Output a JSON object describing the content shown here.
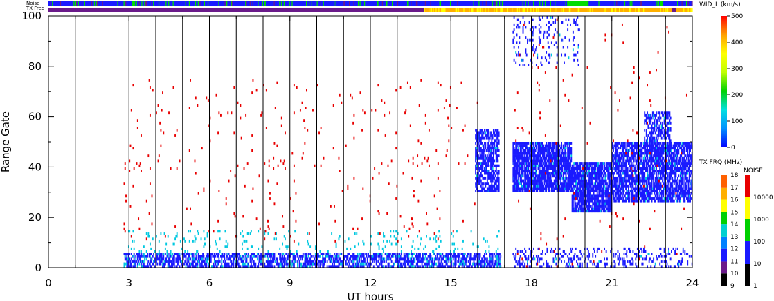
{
  "strip_labels": {
    "noise": "Noise",
    "tx_freq": "TX Freq"
  },
  "colors": {
    "red": "#e80000",
    "blue": "#1a1aff",
    "cyan": "#00c8e0",
    "green": "#00dd00",
    "yellow": "#ffff00",
    "orange": "#ffb000",
    "purple": "#6a1a8a",
    "black": "#000000"
  },
  "chart_data": {
    "type": "heatmap",
    "xlabel": "UT hours",
    "ylabel": "Range Gate",
    "xlim": [
      0,
      24
    ],
    "ylim": [
      0,
      100
    ],
    "x_ticks": [
      0,
      3,
      6,
      9,
      12,
      15,
      18,
      21,
      24
    ],
    "y_ticks": [
      0,
      20,
      40,
      60,
      80,
      100
    ],
    "scan_boundaries_ut": [
      1,
      2,
      3,
      4,
      5,
      6,
      7,
      8,
      9,
      10,
      11,
      12,
      13,
      14,
      15,
      16,
      17,
      18,
      19,
      20,
      21,
      22,
      23
    ],
    "data_gap_ut": [
      16.85,
      17.25
    ],
    "echo_regions": [
      {
        "ut_start": 2.8,
        "ut_end": 16.9,
        "gate_min": 0,
        "gate_max": 6,
        "color": "blue",
        "density": 0.55
      },
      {
        "ut_start": 2.8,
        "ut_end": 16.9,
        "gate_min": 0,
        "gate_max": 15,
        "color": "cyan",
        "density": 0.05
      },
      {
        "ut_start": 2.8,
        "ut_end": 16.0,
        "gate_min": 10,
        "gate_max": 75,
        "color": "red",
        "density": 0.012
      },
      {
        "ut_start": 15.9,
        "ut_end": 16.8,
        "gate_min": 30,
        "gate_max": 55,
        "color": "blue",
        "density": 0.6
      },
      {
        "ut_start": 17.3,
        "ut_end": 19.5,
        "gate_min": 30,
        "gate_max": 50,
        "color": "blue",
        "density": 0.8
      },
      {
        "ut_start": 19.5,
        "ut_end": 21.0,
        "gate_min": 22,
        "gate_max": 42,
        "color": "blue",
        "density": 0.8
      },
      {
        "ut_start": 21.0,
        "ut_end": 24.0,
        "gate_min": 26,
        "gate_max": 50,
        "color": "blue",
        "density": 0.7
      },
      {
        "ut_start": 22.2,
        "ut_end": 23.2,
        "gate_min": 45,
        "gate_max": 62,
        "color": "blue",
        "density": 0.5
      },
      {
        "ut_start": 17.3,
        "ut_end": 19.8,
        "gate_min": 80,
        "gate_max": 100,
        "color": "blue",
        "density": 0.12
      },
      {
        "ut_start": 17.3,
        "ut_end": 24.0,
        "gate_min": 0,
        "gate_max": 8,
        "color": "blue",
        "density": 0.18
      },
      {
        "ut_start": 17.3,
        "ut_end": 24.0,
        "gate_min": 0,
        "gate_max": 100,
        "color": "red",
        "density": 0.006
      }
    ],
    "noise_strip": {
      "dominant_color": "blue",
      "accent_colors": [
        "green",
        "purple"
      ]
    },
    "tx_freq_strip": {
      "segments": [
        {
          "ut_start": 0,
          "ut_end": 14,
          "color": "purple"
        },
        {
          "ut_start": 14,
          "ut_end": 24,
          "color": "orange"
        }
      ]
    },
    "velocity_width_scale": {
      "title": "WID_L (km/s)",
      "ticks": [
        0,
        100,
        200,
        300,
        400,
        500
      ],
      "stops": [
        "#0000ff",
        "#0090ff",
        "#00e0e0",
        "#00d000",
        "#c0ff00",
        "#ffff00",
        "#ffa000",
        "#ff0000"
      ]
    },
    "tx_freq_scale": {
      "title": "TX FRQ (MHz)",
      "ticks": [
        9,
        10,
        11,
        12,
        13,
        14,
        15,
        16,
        17,
        18
      ],
      "colors": [
        "#000000",
        "#6a1a8a",
        "#1a1aff",
        "#0080ff",
        "#00d0d0",
        "#00d000",
        "#ffff00",
        "#ffb000",
        "#ff6000",
        "#e80000"
      ]
    },
    "noise_scale": {
      "title": "NOISE",
      "ticks": [
        "1",
        "10",
        "100",
        "1000",
        "10000"
      ],
      "colors": [
        "#000000",
        "#1a1aff",
        "#00d000",
        "#ffff00",
        "#e80000"
      ]
    }
  }
}
